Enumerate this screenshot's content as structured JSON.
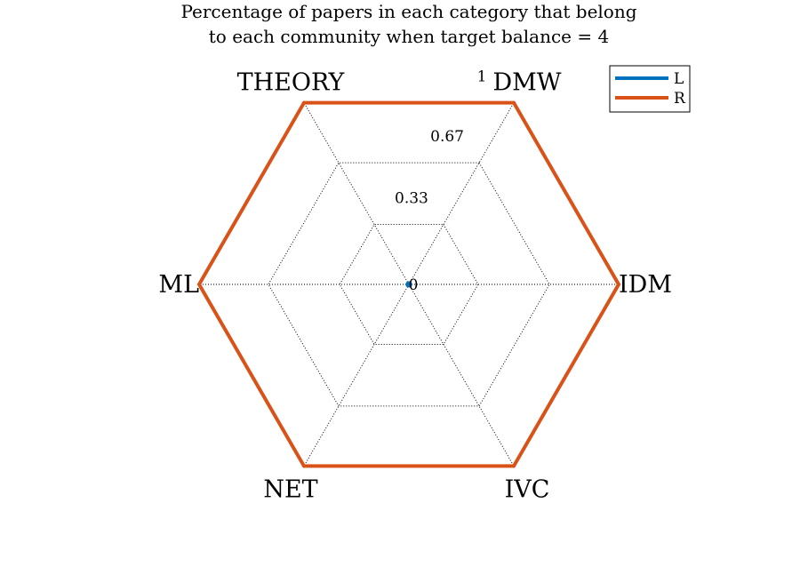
{
  "chart_data": {
    "type": "radar",
    "title": [
      "Percentage of papers in each category that belong",
      "to each community when target balance = 4"
    ],
    "categories": [
      "DMW",
      "IDM",
      "IVC",
      "NET",
      "ML",
      "THEORY"
    ],
    "rlim": [
      0,
      1
    ],
    "rticks": [
      0,
      0.33,
      0.67,
      1
    ],
    "rtick_labels": [
      "0",
      "0.33",
      "0.67",
      "1"
    ],
    "grid": true,
    "legend_position": "top-right",
    "series": [
      {
        "name": "L",
        "color": "#0072BD",
        "values": [
          0,
          0,
          0,
          0,
          0,
          0
        ]
      },
      {
        "name": "R",
        "color": "#D95319",
        "values": [
          1,
          1,
          1,
          1,
          1,
          1
        ]
      }
    ]
  }
}
